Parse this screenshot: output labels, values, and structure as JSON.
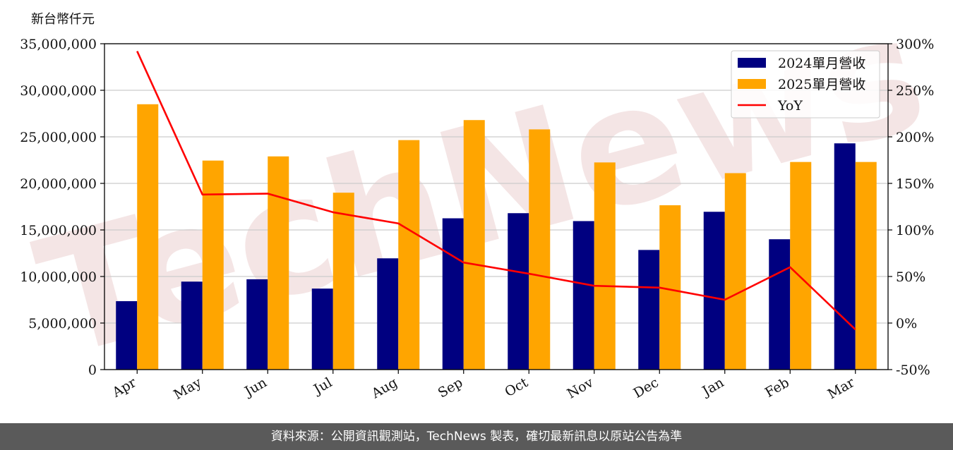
{
  "chart_data": {
    "type": "bar",
    "ylabel": "新台幣仟元",
    "categories": [
      "Apr",
      "May",
      "Jun",
      "Jul",
      "Aug",
      "Sep",
      "Oct",
      "Nov",
      "Dec",
      "Jan",
      "Feb",
      "Mar"
    ],
    "series": [
      {
        "name": "2024單月營收",
        "type": "bar",
        "axis": "left",
        "color": "#000080",
        "values": [
          7350000,
          9450000,
          9700000,
          8700000,
          11950000,
          16250000,
          16800000,
          15950000,
          12850000,
          16950000,
          14000000,
          24300000
        ]
      },
      {
        "name": "2025單月營收",
        "type": "bar",
        "axis": "left",
        "color": "#ffa500",
        "values": [
          28500000,
          22450000,
          22900000,
          19000000,
          24650000,
          26800000,
          25800000,
          22250000,
          17650000,
          21100000,
          22300000,
          22300000
        ]
      },
      {
        "name": "YoY",
        "type": "line",
        "axis": "right",
        "color": "#ff0000",
        "values": [
          292,
          138,
          139,
          119,
          107,
          65,
          53,
          40,
          38,
          25,
          60,
          -7
        ]
      }
    ],
    "ylim": [
      0,
      35000000
    ],
    "yticks": [
      "0",
      "5,000,000",
      "10,000,000",
      "15,000,000",
      "20,000,000",
      "25,000,000",
      "30,000,000",
      "35,000,000"
    ],
    "y2lim": [
      -50,
      300
    ],
    "y2ticks": [
      "-50%",
      "0%",
      "50%",
      "100%",
      "150%",
      "200%",
      "250%",
      "300%"
    ],
    "grid": true,
    "legend_position": "top-right"
  },
  "watermark": "TechNews",
  "footer": {
    "text": "資料來源：公開資訊觀測站，TechNews 製表，確切最新訊息以原站公告為準"
  }
}
